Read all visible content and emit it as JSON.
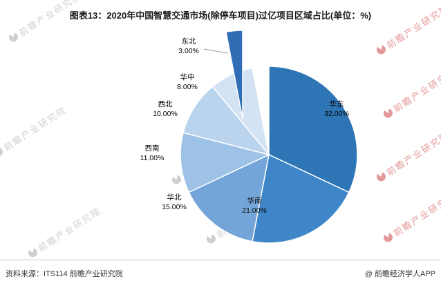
{
  "title": "图表13：2020年中国智慧交通市场(除停车项目)过亿项目区域占比(单位：%)",
  "chart_data": {
    "type": "pie",
    "title": "2020年中国智慧交通市场(除停车项目)过亿项目区域占比",
    "unit": "%",
    "categories": [
      "华东",
      "华南",
      "华北",
      "西南",
      "西北",
      "华中",
      "东北"
    ],
    "values": [
      32,
      21,
      15,
      11,
      10,
      8,
      3
    ],
    "value_labels": [
      "32.00%",
      "21.00%",
      "15.00%",
      "11.00%",
      "10.00%",
      "8.00%",
      "3.00%"
    ],
    "colors": [
      "#2E75B6",
      "#3F86C8",
      "#74A5D8",
      "#9DC2E6",
      "#BAD4EE",
      "#D3E3F4",
      "#2F6EB5"
    ],
    "exploded_category": "东北",
    "legend": "none"
  },
  "footer": {
    "source": "资料来源：ITS114 前瞻产业研究院",
    "brand": "@ 前瞻经济学人APP"
  },
  "watermark": {
    "text": "前瞻产业研究院"
  }
}
